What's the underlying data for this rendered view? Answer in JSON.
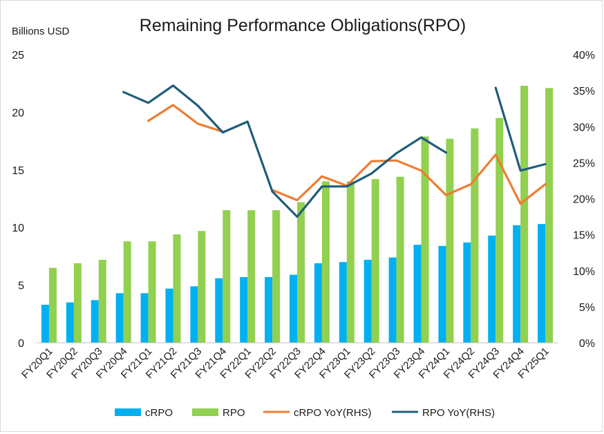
{
  "chart_data": {
    "type": "bar+line",
    "title": "Remaining Performance Obligations(RPO)",
    "ylabel": "Billions USD",
    "ylim": [
      0,
      25
    ],
    "y_ticks": [
      0,
      5,
      10,
      15,
      20,
      25
    ],
    "y2lim": [
      0,
      40
    ],
    "y2_ticks": [
      "0%",
      "5%",
      "10%",
      "15%",
      "20%",
      "25%",
      "30%",
      "35%",
      "40%"
    ],
    "grid": false,
    "legend_position": "bottom",
    "categories": [
      "FY20Q1",
      "FY20Q2",
      "FY20Q3",
      "FY20Q4",
      "FY21Q1",
      "FY21Q2",
      "FY21Q3",
      "FY21Q4",
      "FY22Q1",
      "FY22Q2",
      "FY22Q3",
      "FY22Q4",
      "FY23Q1",
      "FY23Q2",
      "FY23Q3",
      "FY23Q4",
      "FY24Q1",
      "FY24Q2",
      "FY24Q3",
      "FY24Q4",
      "FY25Q1"
    ],
    "series": [
      {
        "name": "cRPO",
        "kind": "bar",
        "axis": "left",
        "color": "#00b0f0",
        "values": [
          3.3,
          3.5,
          3.7,
          4.3,
          4.3,
          4.7,
          4.9,
          5.6,
          5.7,
          5.7,
          5.9,
          6.9,
          7.0,
          7.2,
          7.4,
          8.5,
          8.4,
          8.7,
          9.3,
          10.2,
          10.3
        ]
      },
      {
        "name": "RPO",
        "kind": "bar",
        "axis": "left",
        "color": "#92d050",
        "values": [
          6.5,
          6.9,
          7.2,
          8.8,
          8.8,
          9.4,
          9.7,
          11.5,
          11.5,
          11.5,
          12.2,
          14.0,
          14.0,
          14.2,
          14.4,
          17.9,
          17.7,
          18.6,
          19.5,
          22.3,
          22.1
        ]
      },
      {
        "name": "cRPO YoY(RHS)",
        "kind": "line",
        "axis": "right",
        "color": "#ed7d31",
        "values": [
          null,
          null,
          null,
          null,
          30.8,
          33.0,
          30.4,
          29.3,
          null,
          21.2,
          19.8,
          23.1,
          21.8,
          25.2,
          25.3,
          23.9,
          20.5,
          22.0,
          26.1,
          19.3,
          22.0
        ]
      },
      {
        "name": "RPO YoY(RHS)",
        "kind": "line",
        "axis": "right",
        "color": "#1f5c7a",
        "values": [
          null,
          null,
          null,
          34.8,
          33.3,
          35.7,
          32.9,
          29.2,
          30.7,
          21.0,
          17.5,
          21.7,
          21.7,
          23.5,
          26.3,
          28.5,
          26.4,
          null,
          35.4,
          23.9,
          24.8
        ]
      }
    ]
  }
}
